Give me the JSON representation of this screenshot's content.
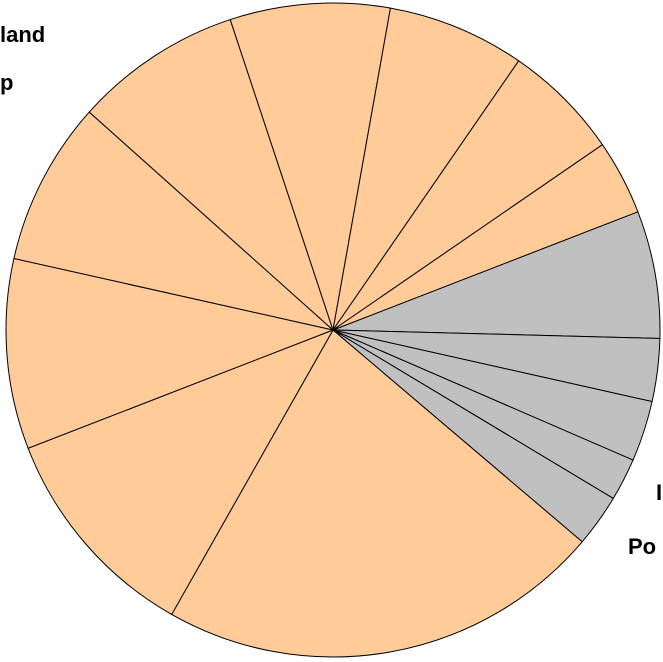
{
  "chart_data": {
    "type": "pie",
    "categories": [
      null,
      null,
      null,
      null,
      null,
      null,
      null,
      null,
      null,
      null,
      null,
      null,
      null,
      null
    ],
    "values": [
      6.3,
      3.1,
      3.0,
      2.1,
      2.6,
      22.0,
      10.9,
      9.4,
      8.1,
      8.3,
      7.9,
      6.8,
      5.8,
      3.7
    ],
    "colors": [
      "#c0c0c0",
      "#c0c0c0",
      "#c0c0c0",
      "#c0c0c0",
      "#c0c0c0",
      "#ffcc99",
      "#ffcc99",
      "#ffcc99",
      "#ffcc99",
      "#ffcc99",
      "#ffcc99",
      "#ffcc99",
      "#ffcc99",
      "#ffcc99"
    ],
    "annotations": [
      "land",
      "p",
      "I",
      "Po"
    ]
  }
}
